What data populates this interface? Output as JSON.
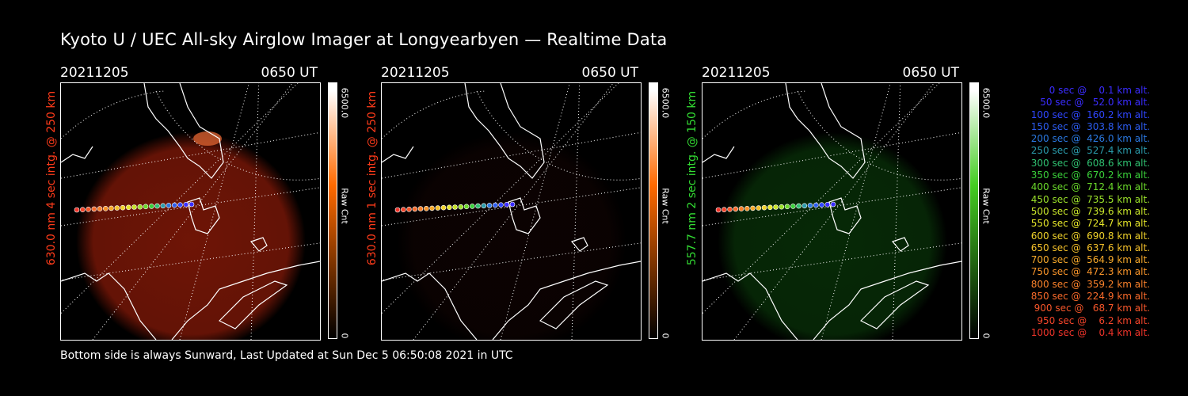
{
  "title": "Kyoto U / UEC All-sky Airglow Imager at Longyearbyen — Realtime Data",
  "footer": "Bottom side is always Sunward, Last Updated at Sun Dec  5 06:50:08 2021 in UTC",
  "panels": [
    {
      "date": "20211205",
      "time": "0650 UT",
      "side_label": "630.0 nm 4 sec intg. @ 250 km",
      "label_color": "#ff3b1a",
      "cbar_max": "6500.0",
      "cbar_min": "0",
      "cbar_unit": "Raw Cnt",
      "cbar_top_color": "#ffffff",
      "cbar_mid_color": "#ff6a00",
      "cbar_bottom_color": "#000000",
      "glow_color": "#8a1a08",
      "glow_level": 0.8
    },
    {
      "date": "20211205",
      "time": "0650 UT",
      "side_label": "630.0 nm 1 sec intg. @ 250 km",
      "label_color": "#ff3b1a",
      "cbar_max": "6500.0",
      "cbar_min": "0",
      "cbar_unit": "Raw Cnt",
      "cbar_top_color": "#ffffff",
      "cbar_mid_color": "#ff6a00",
      "cbar_bottom_color": "#000000",
      "glow_color": "#2e0806",
      "glow_level": 0.25
    },
    {
      "date": "20211205",
      "time": "0650 UT",
      "side_label": "557.7 nm 2 sec intg. @ 150 km",
      "label_color": "#33dd33",
      "cbar_max": "6500.0",
      "cbar_min": "0",
      "cbar_unit": "Raw Cnt",
      "cbar_top_color": "#ffffff",
      "cbar_mid_color": "#44cc22",
      "cbar_bottom_color": "#000000",
      "glow_color": "#0c4a0c",
      "glow_level": 0.55
    }
  ],
  "legend": [
    {
      "text": "   0 sec @    0.1 km alt.",
      "color": "#3a2cff"
    },
    {
      "text": "  50 sec @   52.0 km alt.",
      "color": "#3a2cff"
    },
    {
      "text": " 100 sec @  160.2 km alt.",
      "color": "#2f46ff"
    },
    {
      "text": " 150 sec @  303.8 km alt.",
      "color": "#2c5cf0"
    },
    {
      "text": " 200 sec @  426.0 km alt.",
      "color": "#2a78e0"
    },
    {
      "text": " 250 sec @  527.4 km alt.",
      "color": "#2a9aaa"
    },
    {
      "text": " 300 sec @  608.6 km alt.",
      "color": "#2fc070"
    },
    {
      "text": " 350 sec @  670.2 km alt.",
      "color": "#3ad03a"
    },
    {
      "text": " 400 sec @  712.4 km alt.",
      "color": "#6ad82a"
    },
    {
      "text": " 450 sec @  735.5 km alt.",
      "color": "#9ae02a"
    },
    {
      "text": " 500 sec @  739.6 km alt.",
      "color": "#c8e42a"
    },
    {
      "text": " 550 sec @  724.7 km alt.",
      "color": "#e6e62a"
    },
    {
      "text": " 600 sec @  690.8 km alt.",
      "color": "#f0d22a"
    },
    {
      "text": " 650 sec @  637.6 km alt.",
      "color": "#f4c02a"
    },
    {
      "text": " 700 sec @  564.9 km alt.",
      "color": "#f6a82a"
    },
    {
      "text": " 750 sec @  472.3 km alt.",
      "color": "#f8942a"
    },
    {
      "text": " 800 sec @  359.2 km alt.",
      "color": "#f8802a"
    },
    {
      "text": " 850 sec @  224.9 km alt.",
      "color": "#f86a2a"
    },
    {
      "text": " 900 sec @   68.7 km alt.",
      "color": "#f6562a"
    },
    {
      "text": " 950 sec @    6.2 km alt.",
      "color": "#f4442a"
    },
    {
      "text": "1000 sec @    0.4 km alt.",
      "color": "#f0342a"
    }
  ]
}
